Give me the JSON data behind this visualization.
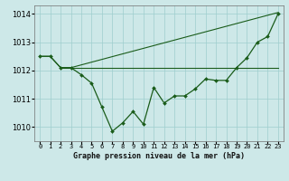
{
  "background_color": "#cde8e8",
  "grid_color": "#9ecece",
  "line_color": "#1a5c1a",
  "marker_color": "#1a5c1a",
  "xlabel": "Graphe pression niveau de la mer (hPa)",
  "ylim": [
    1009.5,
    1014.3
  ],
  "xlim": [
    -0.5,
    23.5
  ],
  "yticks": [
    1010,
    1011,
    1012,
    1013,
    1014
  ],
  "xtick_labels": [
    "0",
    "1",
    "2",
    "3",
    "4",
    "5",
    "6",
    "7",
    "8",
    "9",
    "10",
    "11",
    "12",
    "13",
    "14",
    "15",
    "16",
    "17",
    "18",
    "19",
    "20",
    "21",
    "22",
    "23"
  ],
  "line1_x": [
    0,
    1,
    2,
    3,
    4,
    5,
    6,
    7,
    8,
    9,
    10,
    11,
    12,
    13,
    14,
    15,
    16,
    17,
    18,
    19,
    20,
    21,
    22,
    23
  ],
  "line1_y": [
    1012.5,
    1012.5,
    1012.1,
    1012.1,
    1011.85,
    1011.55,
    1010.7,
    1009.85,
    1010.15,
    1010.55,
    1010.1,
    1011.4,
    1010.85,
    1011.1,
    1011.1,
    1011.35,
    1011.7,
    1011.65,
    1011.65,
    1012.1,
    1012.45,
    1013.0,
    1013.2,
    1014.0
  ],
  "line2_x": [
    0,
    1,
    2,
    3,
    23
  ],
  "line2_y": [
    1012.5,
    1012.5,
    1012.1,
    1012.1,
    1014.05
  ],
  "line3_x": [
    2,
    3,
    19,
    23
  ],
  "line3_y": [
    1012.1,
    1012.1,
    1012.1,
    1012.1
  ],
  "xlabel_fontsize": 6.0,
  "xlabel_fontweight": "bold",
  "ytick_fontsize": 6.0,
  "xtick_fontsize": 5.0
}
